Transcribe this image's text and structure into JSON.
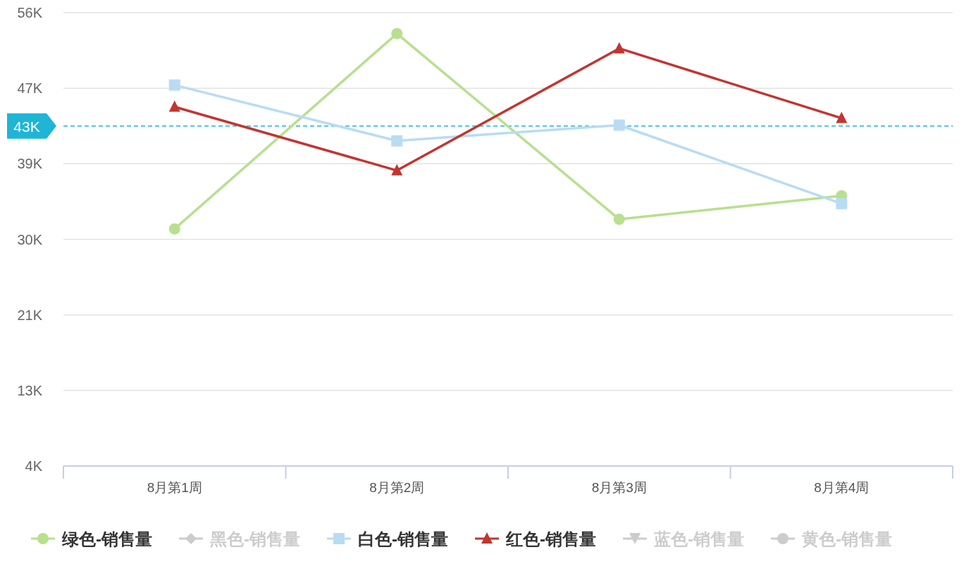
{
  "chart_data": {
    "type": "line",
    "categories": [
      "8月第1周",
      "8月第2周",
      "8月第3周",
      "8月第4周"
    ],
    "series": [
      {
        "name": "绿色-销售量",
        "color": "#b8e08e",
        "marker": "circle",
        "values": [
          31200,
          53600,
          32300,
          35000
        ]
      },
      {
        "name": "黑色-销售量",
        "color": "#cccccc",
        "marker": "diamond",
        "values": [
          null,
          null,
          null,
          null
        ]
      },
      {
        "name": "白色-销售量",
        "color": "#b9dcf3",
        "marker": "square",
        "values": [
          47700,
          41300,
          43100,
          34100
        ]
      },
      {
        "name": "红色-销售量",
        "color": "#c23531",
        "marker": "triangle",
        "values": [
          45200,
          37900,
          51900,
          43900
        ]
      },
      {
        "name": "蓝色-销售量",
        "color": "#cccccc",
        "marker": "triangle-down",
        "values": [
          null,
          null,
          null,
          null
        ]
      },
      {
        "name": "黄色-销售量",
        "color": "#cccccc",
        "marker": "circle",
        "values": [
          null,
          null,
          null,
          null
        ]
      }
    ],
    "ylim": [
      4000,
      56000
    ],
    "yticks": [
      {
        "value": 4000,
        "label": "4K"
      },
      {
        "value": 12667,
        "label": "13K"
      },
      {
        "value": 21333,
        "label": "21K"
      },
      {
        "value": 30000,
        "label": "30K"
      },
      {
        "value": 38667,
        "label": "39K"
      },
      {
        "value": 47333,
        "label": "47K"
      },
      {
        "value": 56000,
        "label": "56K"
      }
    ],
    "ref_lines": [
      {
        "axis": "y",
        "value": 43000,
        "label": "43K",
        "color": "#1fb5d6",
        "line_style": "dashed"
      }
    ],
    "grid": "y",
    "legend": "bottom",
    "line_style": "solid"
  }
}
